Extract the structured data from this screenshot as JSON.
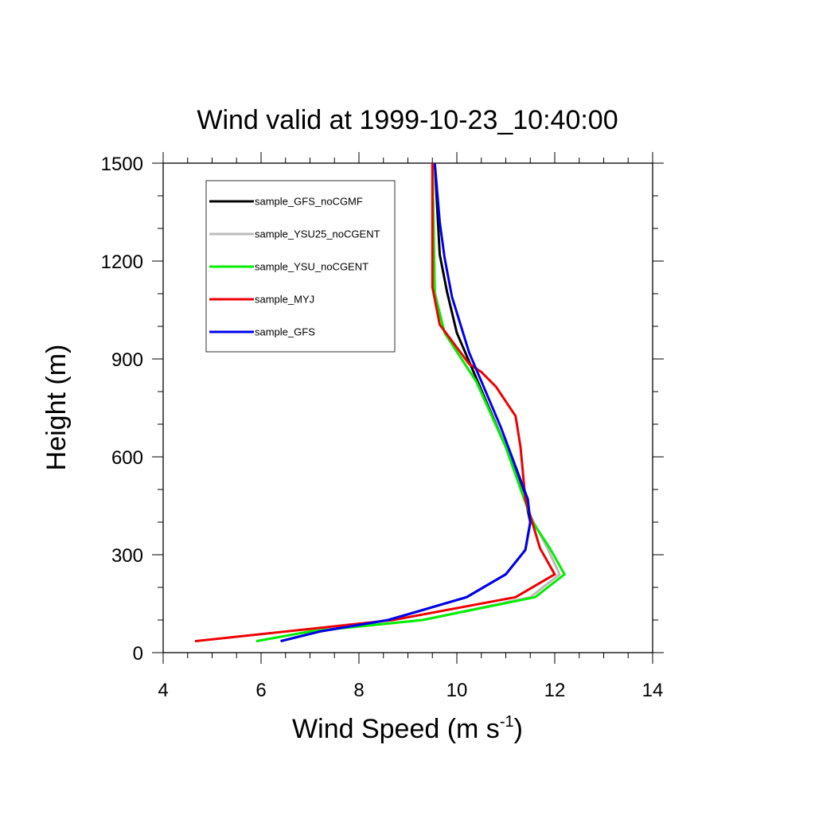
{
  "chart_data": {
    "type": "line",
    "title": "Wind valid at 1999-10-23_10:40:00",
    "xlabel": "Wind Speed (m s",
    "xlabel_sup": "-1",
    "xlabel_end": ")",
    "ylabel": "Height (m)",
    "xlim": [
      4,
      14
    ],
    "ylim": [
      0,
      1500
    ],
    "xticks": [
      4,
      6,
      8,
      10,
      12,
      14
    ],
    "yticks": [
      0,
      300,
      600,
      900,
      1200,
      1500
    ],
    "xtick_labels": [
      "4",
      "6",
      "8",
      "10",
      "12",
      "14"
    ],
    "ytick_labels": [
      "0",
      "300",
      "600",
      "900",
      "1200",
      "1500"
    ],
    "grid": false,
    "legend_position": "top-left",
    "series": [
      {
        "name": "sample_GFS_noCGMF",
        "color": "#000000",
        "points": [
          [
            6.4,
            35
          ],
          [
            7.2,
            65
          ],
          [
            8.6,
            100
          ],
          [
            10.2,
            170
          ],
          [
            11.0,
            240
          ],
          [
            11.4,
            315
          ],
          [
            11.5,
            400
          ],
          [
            11.4,
            470
          ],
          [
            11.0,
            630
          ],
          [
            10.0,
            980
          ],
          [
            9.8,
            1105
          ],
          [
            9.65,
            1220
          ],
          [
            9.55,
            1500
          ]
        ]
      },
      {
        "name": "sample_YSU25_noCGENT",
        "color": "#bbbbbb",
        "points": [
          [
            5.9,
            35
          ],
          [
            7.0,
            65
          ],
          [
            9.3,
            100
          ],
          [
            11.5,
            170
          ],
          [
            12.1,
            240
          ],
          [
            11.85,
            320
          ],
          [
            11.5,
            420
          ],
          [
            11.0,
            630
          ],
          [
            10.4,
            830
          ],
          [
            9.75,
            980
          ],
          [
            9.55,
            1105
          ],
          [
            9.5,
            1500
          ]
        ]
      },
      {
        "name": "sample_YSU_noCGENT",
        "color": "#00ee00",
        "points": [
          [
            5.9,
            35
          ],
          [
            7.0,
            65
          ],
          [
            9.3,
            100
          ],
          [
            11.6,
            170
          ],
          [
            12.2,
            240
          ],
          [
            11.9,
            320
          ],
          [
            11.55,
            400
          ],
          [
            11.4,
            460
          ],
          [
            11.0,
            630
          ],
          [
            10.4,
            830
          ],
          [
            9.75,
            980
          ],
          [
            9.55,
            1100
          ],
          [
            9.5,
            1500
          ]
        ]
      },
      {
        "name": "sample_MYJ",
        "color": "#ee0000",
        "points": [
          [
            4.65,
            35
          ],
          [
            8.7,
            100
          ],
          [
            11.2,
            170
          ],
          [
            12.0,
            240
          ],
          [
            11.7,
            320
          ],
          [
            11.4,
            470
          ],
          [
            11.3,
            630
          ],
          [
            11.2,
            725
          ],
          [
            10.8,
            815
          ],
          [
            10.5,
            860
          ],
          [
            10.25,
            885
          ],
          [
            9.65,
            1005
          ],
          [
            9.5,
            1120
          ],
          [
            9.5,
            1500
          ]
        ]
      },
      {
        "name": "sample_GFS",
        "color": "#0000ee",
        "points": [
          [
            6.4,
            35
          ],
          [
            7.2,
            65
          ],
          [
            8.6,
            100
          ],
          [
            10.2,
            170
          ],
          [
            11.0,
            240
          ],
          [
            11.4,
            315
          ],
          [
            11.5,
            400
          ],
          [
            11.45,
            470
          ],
          [
            10.9,
            690
          ],
          [
            10.25,
            920
          ],
          [
            9.9,
            1090
          ],
          [
            9.75,
            1210
          ],
          [
            9.65,
            1320
          ],
          [
            9.55,
            1500
          ]
        ]
      }
    ]
  }
}
